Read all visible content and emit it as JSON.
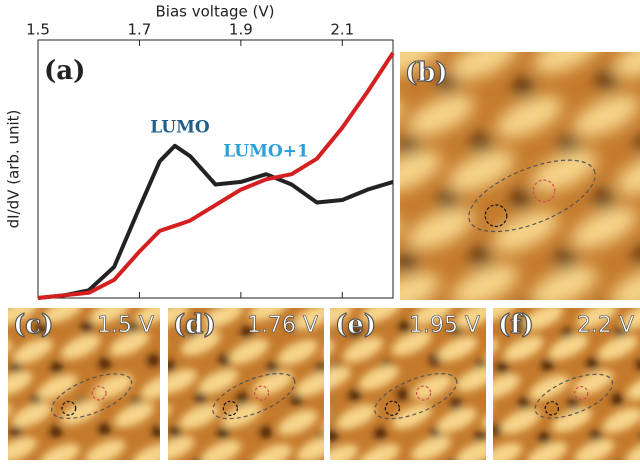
{
  "chart_data": {
    "type": "line",
    "x_label": "Bias voltage (V)",
    "y_label": "dI/dV (arb. unit)",
    "panel_label": "(a)",
    "xlim": [
      1.5,
      2.2
    ],
    "xticks": [
      1.5,
      1.7,
      1.9,
      2.1
    ],
    "ylim": [
      0,
      1
    ],
    "x": [
      1.5,
      1.55,
      1.6,
      1.65,
      1.7,
      1.74,
      1.77,
      1.8,
      1.85,
      1.9,
      1.95,
      2.0,
      2.05,
      2.1,
      2.15,
      2.2
    ],
    "series": [
      {
        "color": "#222222",
        "values": [
          0,
          0.01,
          0.03,
          0.12,
          0.35,
          0.53,
          0.59,
          0.55,
          0.44,
          0.45,
          0.48,
          0.44,
          0.37,
          0.38,
          0.42,
          0.45
        ]
      },
      {
        "color": "#d42020",
        "values": [
          0,
          0.01,
          0.02,
          0.07,
          0.18,
          0.26,
          0.28,
          0.3,
          0.36,
          0.42,
          0.46,
          0.48,
          0.54,
          0.66,
          0.8,
          0.95
        ]
      }
    ],
    "annotations": [
      "LUMO",
      "LUMO+1"
    ]
  },
  "images": [
    {
      "label": "(b)"
    },
    {
      "label": "(c)",
      "caption": "1.5 V"
    },
    {
      "label": "(d)",
      "caption": "1.76 V"
    },
    {
      "label": "(e)",
      "caption": "1.95 V"
    },
    {
      "label": "(f)",
      "caption": "2.2 V"
    }
  ]
}
